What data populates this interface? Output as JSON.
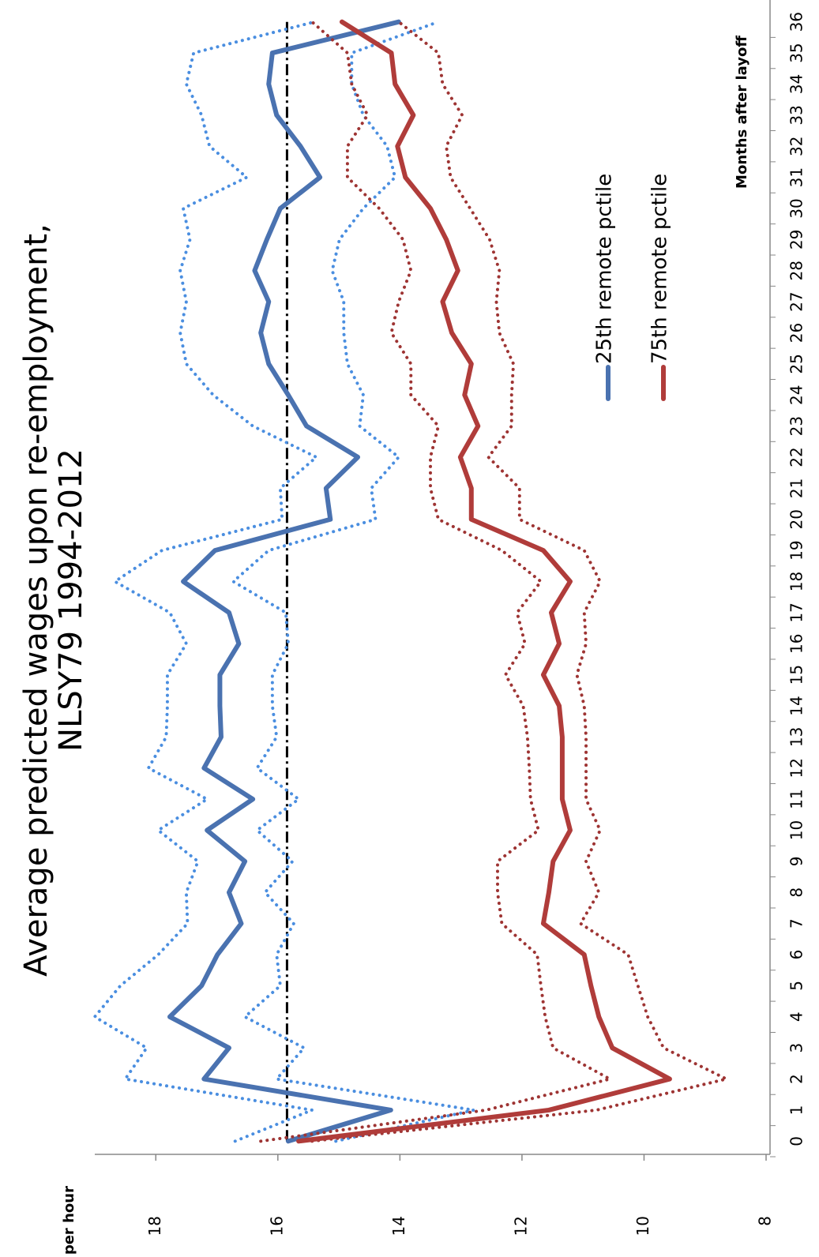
{
  "chart_data": {
    "type": "line",
    "title": "Average predicted wages upon re-employment,",
    "subtitle": "NLSY79 1994-2012",
    "y_label": "$ per hour",
    "x_label": "Months after layoff",
    "categories": [
      "0",
      "1",
      "2",
      "3",
      "4",
      "5",
      "6",
      "7",
      "8",
      "9",
      "10",
      "11",
      "12",
      "13",
      "14",
      "15",
      "16",
      "17",
      "18",
      "19",
      "20",
      "21",
      "22",
      "23",
      "24",
      "25",
      "26",
      "27",
      "28",
      "29",
      "30",
      "31",
      "32",
      "33",
      "34",
      "35",
      "36"
    ],
    "ylim": [
      8,
      19
    ],
    "yticks": [
      8,
      10,
      12,
      14,
      16,
      18
    ],
    "hline": {
      "value": 15.85,
      "color": "#000000"
    },
    "series": [
      {
        "name": "25th remote pctile",
        "color": "#4a72b0",
        "values": [
          15.83,
          14.15,
          17.21,
          16.8,
          17.77,
          17.25,
          16.99,
          16.6,
          16.8,
          16.54,
          17.16,
          16.41,
          17.21,
          16.93,
          16.95,
          16.95,
          16.64,
          16.8,
          17.55,
          17.03,
          15.14,
          15.21,
          14.69,
          15.53,
          15.83,
          16.15,
          16.28,
          16.15,
          16.38,
          16.18,
          15.96,
          15.31,
          15.63,
          16.02,
          16.15,
          16.09,
          14.02
        ],
        "band_color": "#4a8ee0",
        "upper": [
          16.7,
          15.44,
          18.5,
          18.15,
          19.0,
          18.58,
          17.96,
          17.48,
          17.5,
          17.31,
          17.96,
          17.16,
          18.12,
          17.83,
          17.81,
          17.81,
          17.5,
          17.77,
          18.67,
          17.9,
          15.93,
          15.96,
          15.37,
          16.41,
          17.06,
          17.5,
          17.6,
          17.5,
          17.6,
          17.44,
          17.55,
          16.51,
          17.12,
          17.25,
          17.5,
          17.38,
          15.4
        ],
        "lower": [
          15.05,
          12.79,
          16.02,
          15.57,
          16.54,
          15.96,
          16.02,
          15.74,
          16.21,
          15.76,
          16.34,
          15.66,
          16.34,
          16.02,
          16.09,
          16.09,
          15.83,
          15.87,
          16.73,
          16.15,
          14.4,
          14.47,
          14.02,
          14.66,
          14.6,
          14.86,
          14.92,
          14.92,
          15.11,
          14.99,
          14.6,
          14.08,
          14.21,
          14.6,
          14.79,
          14.79,
          13.37
        ]
      },
      {
        "name": "75th remote pctile",
        "color": "#b03c3a",
        "values": [
          15.66,
          11.56,
          9.58,
          10.52,
          10.74,
          10.87,
          10.98,
          11.65,
          11.56,
          11.49,
          11.21,
          11.34,
          11.34,
          11.34,
          11.39,
          11.65,
          11.39,
          11.52,
          11.21,
          11.65,
          12.83,
          12.83,
          13.01,
          12.72,
          12.94,
          12.83,
          13.15,
          13.3,
          13.05,
          13.24,
          13.5,
          13.91,
          14.04,
          13.78,
          14.08,
          14.14,
          14.95
        ],
        "band_color": "#9e3433",
        "upper": [
          16.28,
          12.59,
          10.56,
          11.49,
          11.62,
          11.69,
          11.75,
          12.33,
          12.4,
          12.4,
          11.73,
          11.86,
          11.88,
          11.91,
          11.98,
          12.27,
          11.95,
          12.08,
          11.69,
          12.33,
          13.37,
          13.5,
          13.5,
          13.37,
          13.82,
          13.82,
          14.14,
          14.02,
          13.82,
          13.95,
          14.34,
          14.86,
          14.86,
          14.53,
          14.79,
          14.86,
          15.44
        ],
        "lower": [
          15.44,
          10.78,
          8.65,
          9.68,
          9.94,
          10.1,
          10.26,
          11.04,
          10.74,
          10.95,
          10.72,
          10.95,
          10.95,
          10.95,
          10.98,
          11.1,
          10.95,
          10.98,
          10.72,
          10.98,
          12.04,
          12.04,
          12.55,
          12.17,
          12.17,
          12.14,
          12.37,
          12.42,
          12.37,
          12.53,
          12.85,
          13.17,
          13.24,
          12.98,
          13.3,
          13.37,
          14.02
        ]
      }
    ]
  }
}
